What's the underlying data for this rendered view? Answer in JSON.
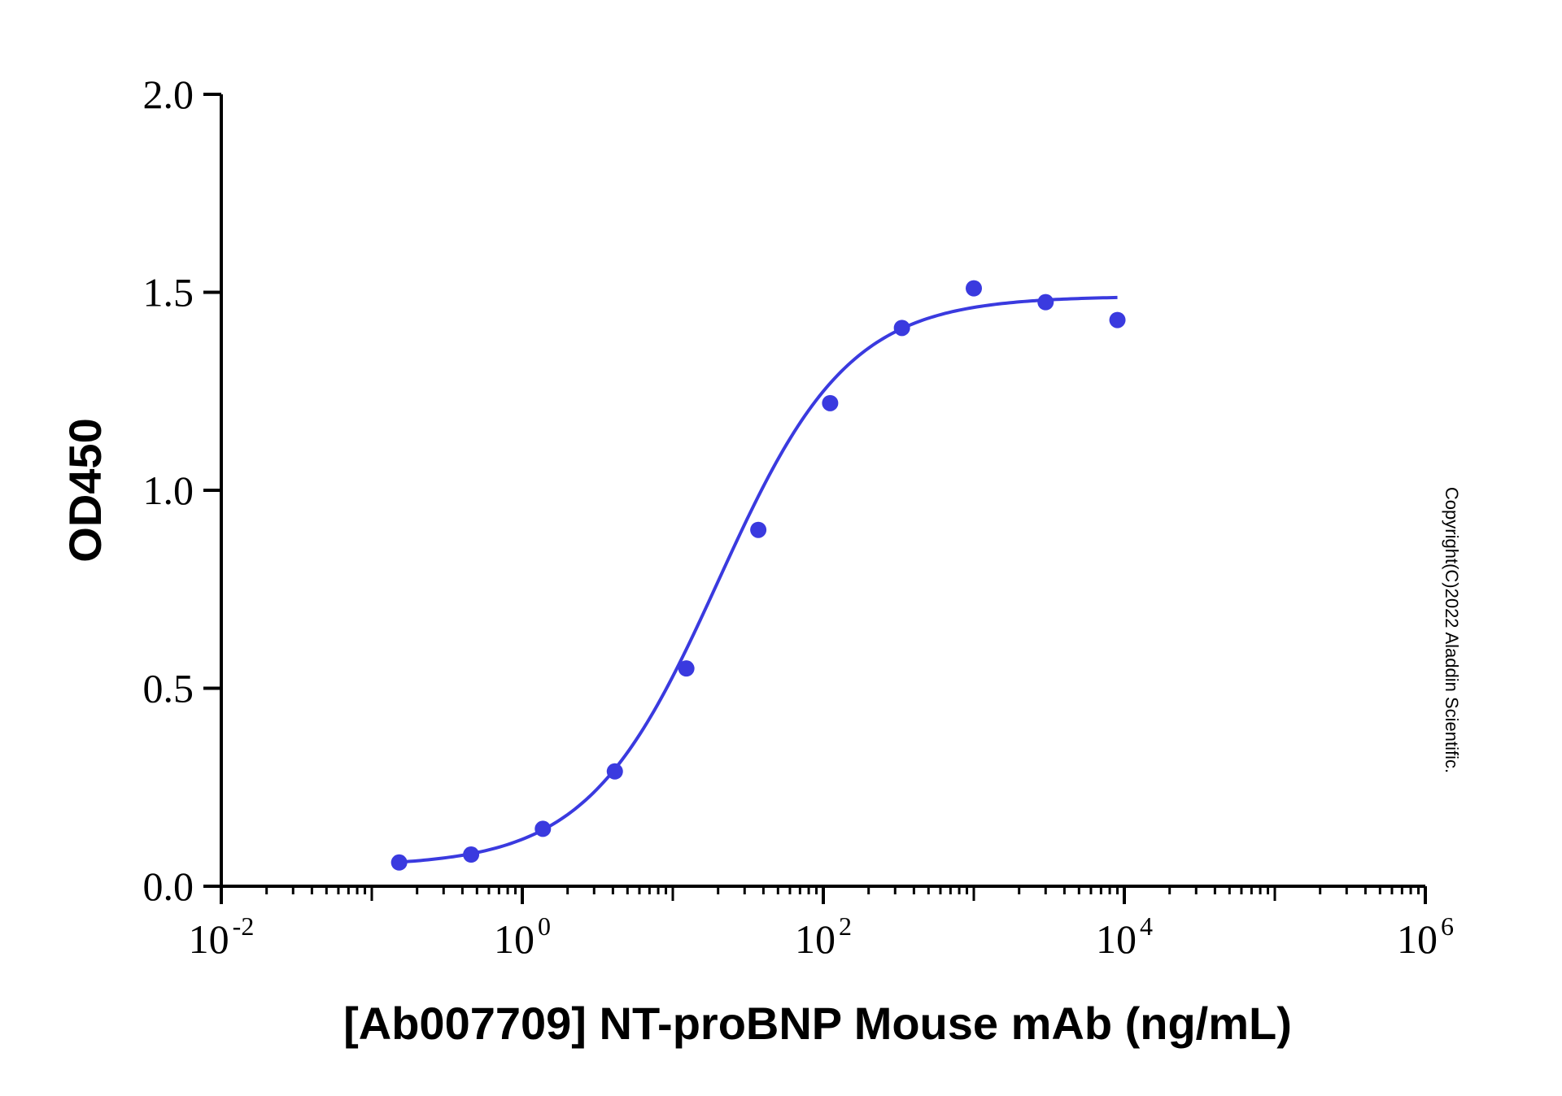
{
  "chart_data": {
    "type": "scatter",
    "xlabel": "[Ab007709] NT-proBNP Mouse mAb (ng/mL)",
    "ylabel": "OD450",
    "xscale": "log",
    "xlim": [
      0.01,
      1000000
    ],
    "ylim": [
      0.0,
      2.0
    ],
    "x_ticks": [
      {
        "base": "10",
        "exp": "-2",
        "value": 0.01
      },
      {
        "base": "10",
        "exp": "0",
        "value": 1
      },
      {
        "base": "10",
        "exp": "2",
        "value": 100
      },
      {
        "base": "10",
        "exp": "4",
        "value": 10000
      },
      {
        "base": "10",
        "exp": "6",
        "value": 1000000
      }
    ],
    "y_ticks": [
      {
        "label": "0.0",
        "value": 0.0
      },
      {
        "label": "0.5",
        "value": 0.5
      },
      {
        "label": "1.0",
        "value": 1.0
      },
      {
        "label": "1.5",
        "value": 1.5
      },
      {
        "label": "2.0",
        "value": 2.0
      }
    ],
    "grid": false,
    "series": [
      {
        "color": "#3a3adf",
        "points": [
          {
            "x": 0.152,
            "y": 0.06
          },
          {
            "x": 0.457,
            "y": 0.08
          },
          {
            "x": 1.37,
            "y": 0.145
          },
          {
            "x": 4.12,
            "y": 0.29
          },
          {
            "x": 12.3,
            "y": 0.55
          },
          {
            "x": 37.0,
            "y": 0.9
          },
          {
            "x": 111,
            "y": 1.22
          },
          {
            "x": 333,
            "y": 1.41
          },
          {
            "x": 1000,
            "y": 1.51
          },
          {
            "x": 3000,
            "y": 1.475
          },
          {
            "x": 9000,
            "y": 1.43
          }
        ],
        "fit": {
          "model": "4PL",
          "bottom": 0.05,
          "top": 1.49,
          "ec50": 20,
          "hill": 1.0,
          "x_range": [
            0.152,
            9000
          ]
        }
      }
    ],
    "watermark": "Copyright(C)2022 Aladdin Scientific."
  }
}
